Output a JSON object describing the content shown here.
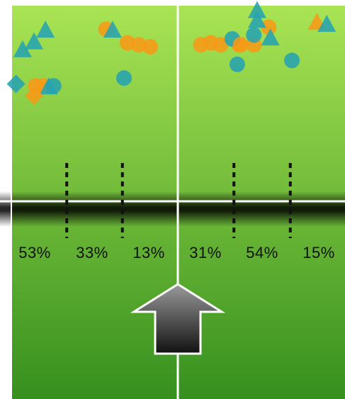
{
  "chart_data": {
    "type": "scatter",
    "panels": [
      {
        "name": "",
        "zone_percentages": [
          "53%",
          "33%",
          "13%"
        ],
        "points": [
          {
            "shape": "triangle",
            "color": "teal",
            "x": 0.06,
            "y": 0.78
          },
          {
            "shape": "triangle",
            "color": "teal",
            "x": 0.13,
            "y": 0.82
          },
          {
            "shape": "triangle",
            "color": "teal",
            "x": 0.2,
            "y": 0.88
          },
          {
            "shape": "diamond",
            "color": "teal",
            "x": 0.02,
            "y": 0.6
          },
          {
            "shape": "circle",
            "color": "orange",
            "x": 0.14,
            "y": 0.59
          },
          {
            "shape": "circle",
            "color": "orange",
            "x": 0.19,
            "y": 0.59
          },
          {
            "shape": "circle",
            "color": "teal",
            "x": 0.25,
            "y": 0.59
          },
          {
            "shape": "triangle",
            "color": "teal",
            "x": 0.22,
            "y": 0.59
          },
          {
            "shape": "diamond",
            "color": "orange",
            "x": 0.13,
            "y": 0.54
          },
          {
            "shape": "circle",
            "color": "orange",
            "x": 0.57,
            "y": 0.88
          },
          {
            "shape": "triangle",
            "color": "teal",
            "x": 0.61,
            "y": 0.88
          },
          {
            "shape": "circle",
            "color": "orange",
            "x": 0.7,
            "y": 0.81
          },
          {
            "shape": "circle",
            "color": "orange",
            "x": 0.77,
            "y": 0.8
          },
          {
            "shape": "circle",
            "color": "orange",
            "x": 0.84,
            "y": 0.79
          },
          {
            "shape": "circle",
            "color": "teal",
            "x": 0.68,
            "y": 0.63
          }
        ]
      },
      {
        "name": "",
        "zone_percentages": [
          "31%",
          "54%",
          "15%"
        ],
        "points": [
          {
            "shape": "circle",
            "color": "orange",
            "x": 0.13,
            "y": 0.8
          },
          {
            "shape": "circle",
            "color": "orange",
            "x": 0.19,
            "y": 0.81
          },
          {
            "shape": "circle",
            "color": "orange",
            "x": 0.25,
            "y": 0.8
          },
          {
            "shape": "circle",
            "color": "orange",
            "x": 0.36,
            "y": 0.8
          },
          {
            "shape": "circle",
            "color": "teal",
            "x": 0.32,
            "y": 0.83
          },
          {
            "shape": "circle",
            "color": "orange",
            "x": 0.37,
            "y": 0.8
          },
          {
            "shape": "circle",
            "color": "teal",
            "x": 0.35,
            "y": 0.7
          },
          {
            "shape": "circle",
            "color": "orange",
            "x": 0.45,
            "y": 0.8
          },
          {
            "shape": "circle",
            "color": "teal",
            "x": 0.45,
            "y": 0.85
          },
          {
            "shape": "circle",
            "color": "orange",
            "x": 0.54,
            "y": 0.89
          },
          {
            "shape": "triangle",
            "color": "teal",
            "x": 0.47,
            "y": 0.98
          },
          {
            "shape": "triangle",
            "color": "teal",
            "x": 0.47,
            "y": 0.93
          },
          {
            "shape": "triangle",
            "color": "teal",
            "x": 0.55,
            "y": 0.84
          },
          {
            "shape": "circle",
            "color": "teal",
            "x": 0.68,
            "y": 0.72
          },
          {
            "shape": "triangle",
            "color": "orange",
            "x": 0.83,
            "y": 0.92
          },
          {
            "shape": "triangle",
            "color": "teal",
            "x": 0.89,
            "y": 0.91
          }
        ]
      }
    ],
    "zone_dividers": [
      0.33,
      0.67
    ],
    "xlim": [
      0,
      1
    ],
    "ylim": [
      0,
      1
    ],
    "grid": false,
    "legend": "none"
  },
  "colors": {
    "teal": "#27a3b0",
    "orange": "#f79a17",
    "field_top": "#a9e454",
    "field_bottom": "#36901e",
    "arrow_top": "#9a9a9a",
    "arrow_bottom": "#111111"
  },
  "icons": {
    "direction_arrow": "up-arrow-icon"
  }
}
